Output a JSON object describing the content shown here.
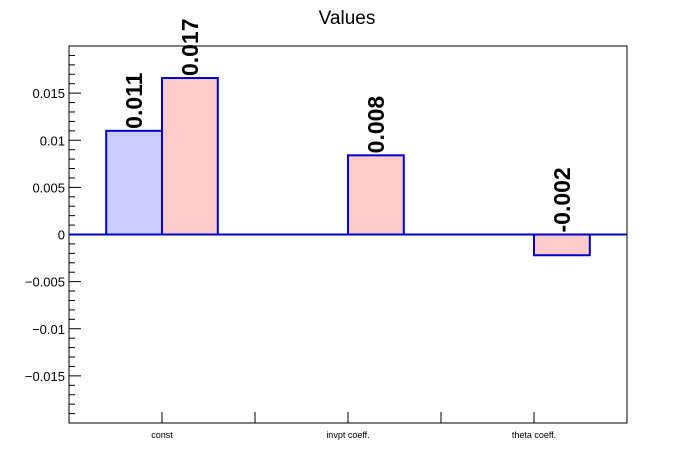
{
  "chart_data": {
    "type": "bar",
    "title": "Values",
    "xlabel": "",
    "ylabel": "",
    "categories": [
      "const",
      "invpt coeff.",
      "theta coeff."
    ],
    "ylim": [
      -0.02,
      0.02
    ],
    "yticks": [
      -0.015,
      -0.01,
      -0.005,
      0,
      0.005,
      0.01,
      0.015
    ],
    "ytick_labels": [
      "−0.015",
      "−0.01",
      "−0.005",
      "0",
      "0.005",
      "0.01",
      "0.015"
    ],
    "grid": false,
    "series": [
      {
        "values": [
          0.011,
          null,
          null
        ],
        "color": "#ccccff",
        "edge_color": "#0000cc",
        "labels": [
          "0.011",
          "",
          ""
        ]
      },
      {
        "values": [
          0.0166,
          0.0084,
          -0.0022
        ],
        "color": "#ffcccc",
        "edge_color": "#0000cc",
        "labels": [
          "0.017",
          "0.008",
          "-0.002"
        ]
      }
    ]
  }
}
